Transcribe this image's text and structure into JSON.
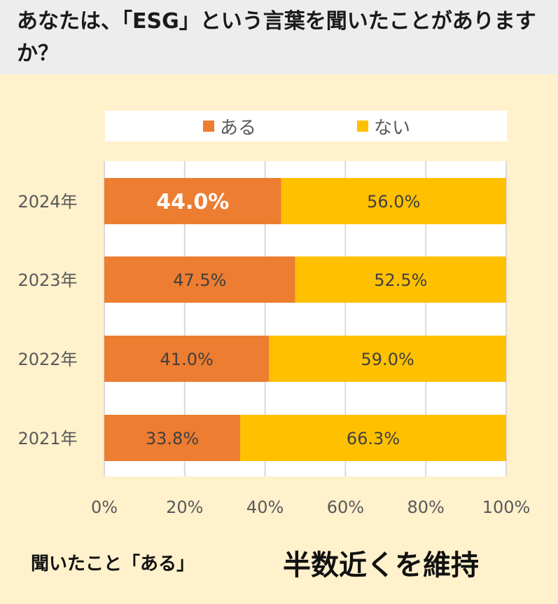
{
  "header": {
    "title": "あなたは、「ESG」という言葉を聞いたことがありますか？"
  },
  "colors": {
    "aru": "#ED7D31",
    "nai": "#FFC000",
    "background": "#FFF1CC",
    "header_bg": "#EDEDED"
  },
  "chart_data": {
    "type": "bar",
    "orientation": "horizontal",
    "stacked": true,
    "categories": [
      "2024年",
      "2023年",
      "2022年",
      "2021年"
    ],
    "series": [
      {
        "name": "ある",
        "values": [
          44.0,
          47.5,
          41.0,
          33.8
        ],
        "labels": [
          "44.0%",
          "47.5%",
          "41.0%",
          "33.8%"
        ]
      },
      {
        "name": "ない",
        "values": [
          56.0,
          52.5,
          59.0,
          66.3
        ],
        "labels": [
          "56.0%",
          "52.5%",
          "59.0%",
          "66.3%"
        ]
      }
    ],
    "xlim": [
      0,
      100
    ],
    "xticks": [
      "0%",
      "20%",
      "40%",
      "60%",
      "80%",
      "100%"
    ],
    "xtick_values": [
      0,
      20,
      40,
      60,
      80,
      100
    ],
    "grid": true,
    "legend_position": "top",
    "highlight_label": "44.0%"
  },
  "footer": {
    "left_text": "聞いたこと「ある」",
    "right_text": "半数近くを維持"
  }
}
